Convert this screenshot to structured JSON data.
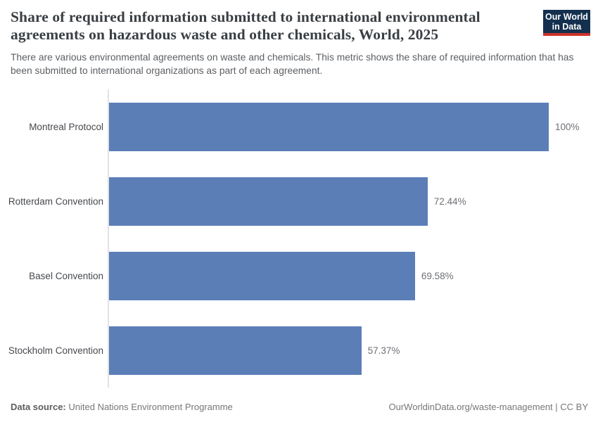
{
  "header": {
    "title": "Share of required information submitted to international environmental agreements on hazardous waste and other chemicals, World, 2025",
    "subtitle": "There are various environmental agreements on waste and chemicals. This metric shows the share of required information that has been submitted to international organizations as part of each agreement.",
    "logo": {
      "line1": "Our World",
      "line2": "in Data"
    }
  },
  "chart_data": {
    "type": "bar",
    "orientation": "horizontal",
    "title": "Share of required information submitted to international environmental agreements on hazardous waste and other chemicals, World, 2025",
    "categories": [
      "Montreal Protocol",
      "Rotterdam Convention",
      "Basel Convention",
      "Stockholm Convention"
    ],
    "values": [
      100,
      72.44,
      69.58,
      57.37
    ],
    "value_labels": [
      "100%",
      "72.44%",
      "69.58%",
      "57.37%"
    ],
    "xlabel": "",
    "ylabel": "",
    "xlim": [
      0,
      100
    ],
    "grid": false,
    "legend": false
  },
  "footer": {
    "data_source_label": "Data source:",
    "data_source_value": "United Nations Environment Programme",
    "attribution": "OurWorldinData.org/waste-management | CC BY"
  },
  "colors": {
    "bar": "#5b7eb7",
    "logo_bg": "#14304e",
    "logo_underline": "#cf3129",
    "axis_line": "#e2e2e6"
  }
}
